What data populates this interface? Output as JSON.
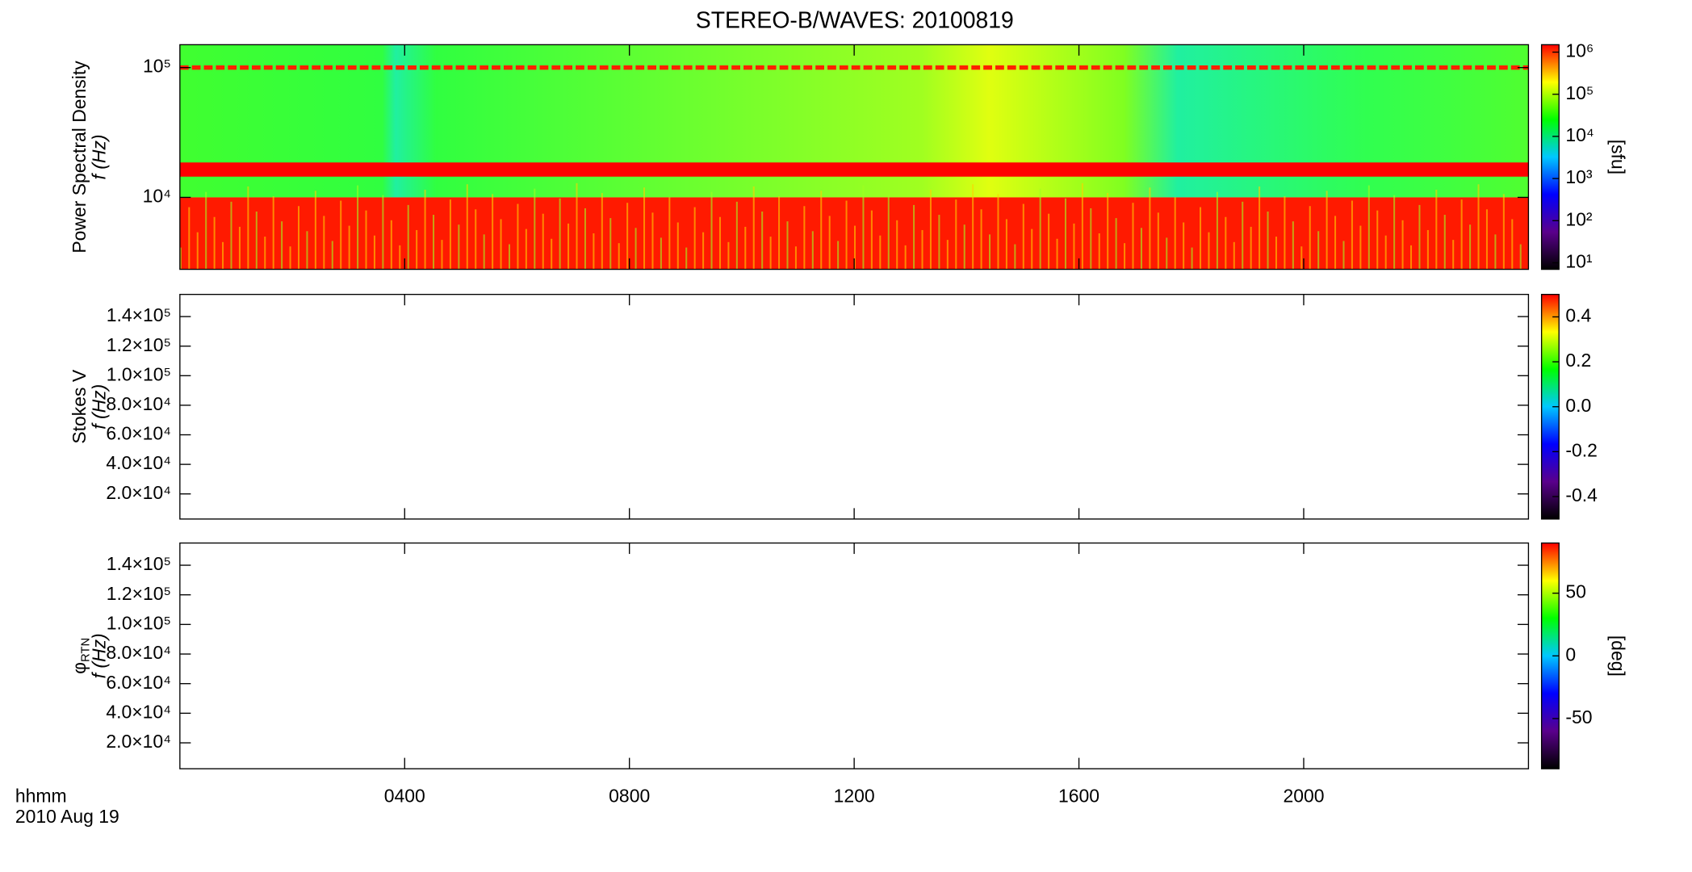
{
  "chart_data": [
    {
      "type": "heatmap",
      "title": "STEREO-B/WAVES: 20100819",
      "ylabel": "Power Spectral Density",
      "ylabel2": "f (Hz)",
      "ylog": true,
      "ylim": [
        2790,
        150000
      ],
      "yticks": [
        {
          "value": 10000,
          "label": "10⁴"
        },
        {
          "value": 100000,
          "label": "10⁵"
        }
      ],
      "xlim": [
        0,
        24
      ],
      "colorbar": {
        "log": true,
        "lim": [
          7,
          1500000
        ],
        "label": "[sfu]",
        "ticks": [
          {
            "value": 10,
            "label": "10¹"
          },
          {
            "value": 100,
            "label": "10²"
          },
          {
            "value": 1000,
            "label": "10³"
          },
          {
            "value": 10000,
            "label": "10⁴"
          },
          {
            "value": 100000,
            "label": "10⁵"
          },
          {
            "value": 1000000,
            "label": "10⁶"
          }
        ],
        "colors": [
          "#000000",
          "#5a008c",
          "#0000ff",
          "#00c8ff",
          "#00ff00",
          "#ffff00",
          "#ff0000"
        ]
      }
    },
    {
      "type": "heatmap",
      "ylabel": "Stokes V",
      "ylabel2": "f (Hz)",
      "ylog": false,
      "ylim": [
        3000,
        155000
      ],
      "yticks": [
        {
          "value": 20000,
          "label": "2.0×10⁴"
        },
        {
          "value": 40000,
          "label": "4.0×10⁴"
        },
        {
          "value": 60000,
          "label": "6.0×10⁴"
        },
        {
          "value": 80000,
          "label": "8.0×10⁴"
        },
        {
          "value": 100000,
          "label": "1.0×10⁵"
        },
        {
          "value": 120000,
          "label": "1.2×10⁵"
        },
        {
          "value": 140000,
          "label": "1.4×10⁵"
        }
      ],
      "xlim": [
        0,
        24
      ],
      "colorbar": {
        "log": false,
        "lim": [
          -0.5,
          0.5
        ],
        "ticks": [
          -0.4,
          -0.2,
          {
            "value": 0,
            "label": "0.0"
          },
          0.2,
          0.4
        ],
        "colors": [
          "#000000",
          "#5a008c",
          "#0000ff",
          "#00c8ff",
          "#00ff00",
          "#ffff00",
          "#ff0000"
        ]
      }
    },
    {
      "type": "heatmap",
      "ylabel": "φ",
      "ylabel_sub": "RTN",
      "ylabel2": "f (Hz)",
      "ylog": false,
      "ylim": [
        2500,
        155000
      ],
      "yticks": [
        {
          "value": 20000,
          "label": "2.0×10⁴"
        },
        {
          "value": 40000,
          "label": "4.0×10⁴"
        },
        {
          "value": 60000,
          "label": "6.0×10⁴"
        },
        {
          "value": 80000,
          "label": "8.0×10⁴"
        },
        {
          "value": 100000,
          "label": "1.0×10⁵"
        },
        {
          "value": 120000,
          "label": "1.2×10⁵"
        },
        {
          "value": 140000,
          "label": "1.4×10⁵"
        }
      ],
      "xlim": [
        0,
        24
      ],
      "xticks": [
        {
          "value": 4,
          "label": "0400"
        },
        {
          "value": 8,
          "label": "0800"
        },
        {
          "value": 12,
          "label": "1200"
        },
        {
          "value": 16,
          "label": "1600"
        },
        {
          "value": 20,
          "label": "2000"
        }
      ],
      "xlabel": "hhmm",
      "date": "2010 Aug 19",
      "colorbar": {
        "log": false,
        "lim": [
          -90,
          90
        ],
        "label": "[deg]",
        "ticks": [
          -50,
          0,
          50
        ],
        "colors": [
          "#000000",
          "#5a008c",
          "#0000ff",
          "#00c8ff",
          "#00ff00",
          "#ffff00",
          "#ff0000"
        ]
      }
    }
  ]
}
